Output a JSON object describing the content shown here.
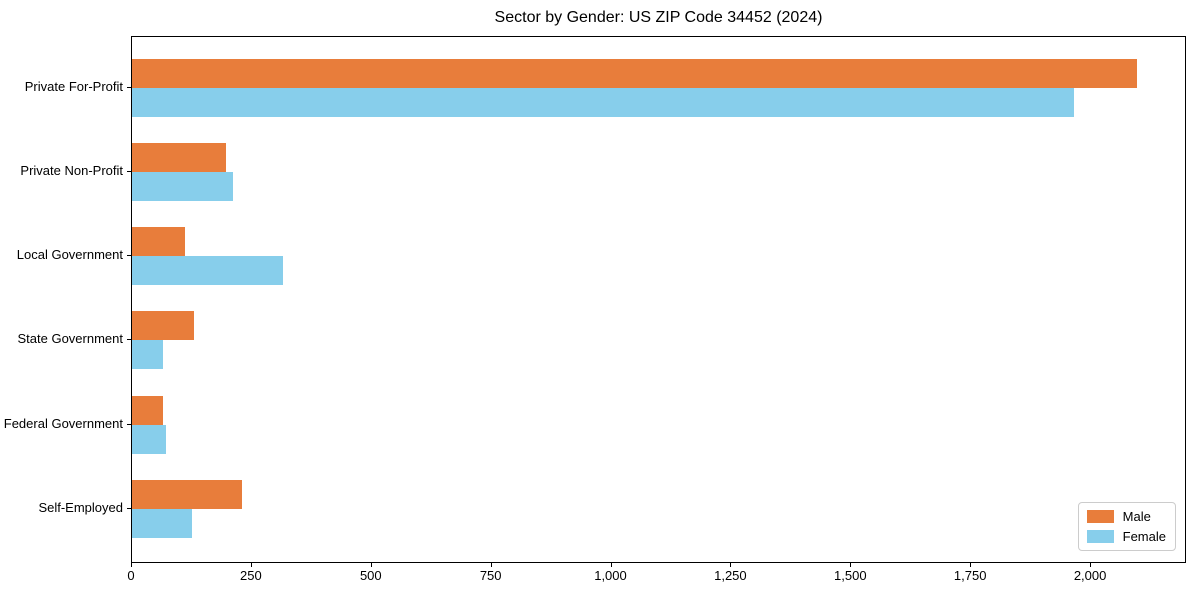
{
  "chart_data": {
    "type": "bar",
    "orientation": "horizontal",
    "title": "Sector by Gender: US ZIP Code 34452 (2024)",
    "categories": [
      "Private For-Profit",
      "Private Non-Profit",
      "Local Government",
      "State Government",
      "Federal Government",
      "Self-Employed"
    ],
    "series": [
      {
        "name": "Male",
        "color": "#e87d3b",
        "values": [
          2095,
          195,
          110,
          130,
          65,
          230
        ]
      },
      {
        "name": "Female",
        "color": "#87ceeb",
        "values": [
          1965,
          210,
          315,
          65,
          70,
          125
        ]
      }
    ],
    "xlabel": "",
    "ylabel": "",
    "xlim": [
      0,
      2200
    ],
    "xticks": [
      0,
      250,
      500,
      750,
      1000,
      1250,
      1500,
      1750,
      2000
    ],
    "xtick_labels": [
      "0",
      "250",
      "500",
      "750",
      "1,000",
      "1,250",
      "1,500",
      "1,750",
      "2,000"
    ],
    "grid": false,
    "legend_position": "lower-right"
  },
  "colors": {
    "male": "#e87d3b",
    "female": "#87ceeb",
    "spine": "#000000",
    "legend_border": "#cccccc",
    "background": "#ffffff"
  }
}
